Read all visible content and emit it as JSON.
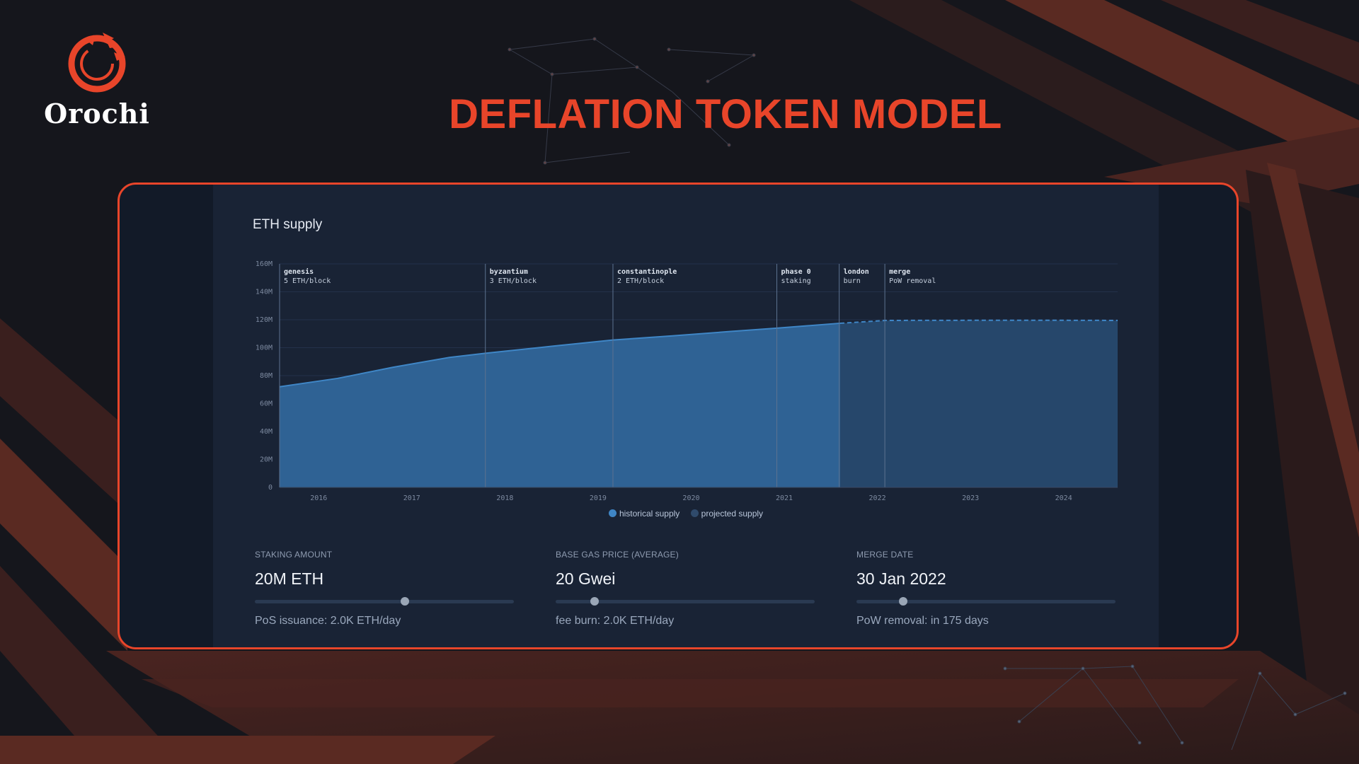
{
  "brand": {
    "name": "Orochi"
  },
  "title": {
    "text": "DEFLATION TOKEN MODEL",
    "color": "#e8452a"
  },
  "colors": {
    "accent": "#e8452a",
    "historical": "#2f6294",
    "historical_line": "#3f86c6",
    "projected": "#26476b"
  },
  "chart_data": {
    "type": "area",
    "title": "ETH supply",
    "xlabel": "",
    "ylabel": "",
    "x_ticks": [
      "2016",
      "2017",
      "2018",
      "2019",
      "2020",
      "2021",
      "2022",
      "2023",
      "2024"
    ],
    "y_ticks": [
      "0",
      "20M",
      "40M",
      "60M",
      "80M",
      "100M",
      "120M",
      "140M",
      "160M"
    ],
    "xlim": [
      2015.58,
      2024.58
    ],
    "ylim": [
      0,
      160
    ],
    "grid": true,
    "legend_position": "bottom",
    "series": [
      {
        "name": "historical supply",
        "style": "solid",
        "x": [
          2015.58,
          2016.2,
          2016.8,
          2017.4,
          2017.79,
          2018.5,
          2019.16,
          2019.8,
          2020.4,
          2020.92,
          2021.6
        ],
        "values": [
          72,
          78,
          86,
          93,
          96,
          101,
          105.5,
          108.5,
          111.5,
          114,
          117.5
        ]
      },
      {
        "name": "projected supply",
        "style": "dashed",
        "x": [
          2021.6,
          2022.09,
          2023.0,
          2024.0,
          2024.58
        ],
        "values": [
          117.5,
          119.5,
          119.6,
          119.6,
          119.5
        ]
      }
    ],
    "annotations": [
      {
        "x": 2015.58,
        "label": "genesis",
        "sub": "5 ETH/block"
      },
      {
        "x": 2017.79,
        "label": "byzantium",
        "sub": "3 ETH/block"
      },
      {
        "x": 2019.16,
        "label": "constantinople",
        "sub": "2 ETH/block"
      },
      {
        "x": 2020.92,
        "label": "phase 0",
        "sub": "staking"
      },
      {
        "x": 2021.59,
        "label": "london",
        "sub": "burn"
      },
      {
        "x": 2022.08,
        "label": "merge",
        "sub": "PoW removal"
      }
    ]
  },
  "controls": [
    {
      "label": "STAKING AMOUNT",
      "value": "20M ETH",
      "fraction": 0.58,
      "note": "PoS issuance: 2.0K ETH/day"
    },
    {
      "label": "BASE GAS PRICE (AVERAGE)",
      "value": "20 Gwei",
      "fraction": 0.15,
      "note": "fee burn: 2.0K ETH/day"
    },
    {
      "label": "MERGE DATE",
      "value": "30 Jan 2022",
      "fraction": 0.18,
      "note": "PoW removal: in 175 days"
    }
  ]
}
